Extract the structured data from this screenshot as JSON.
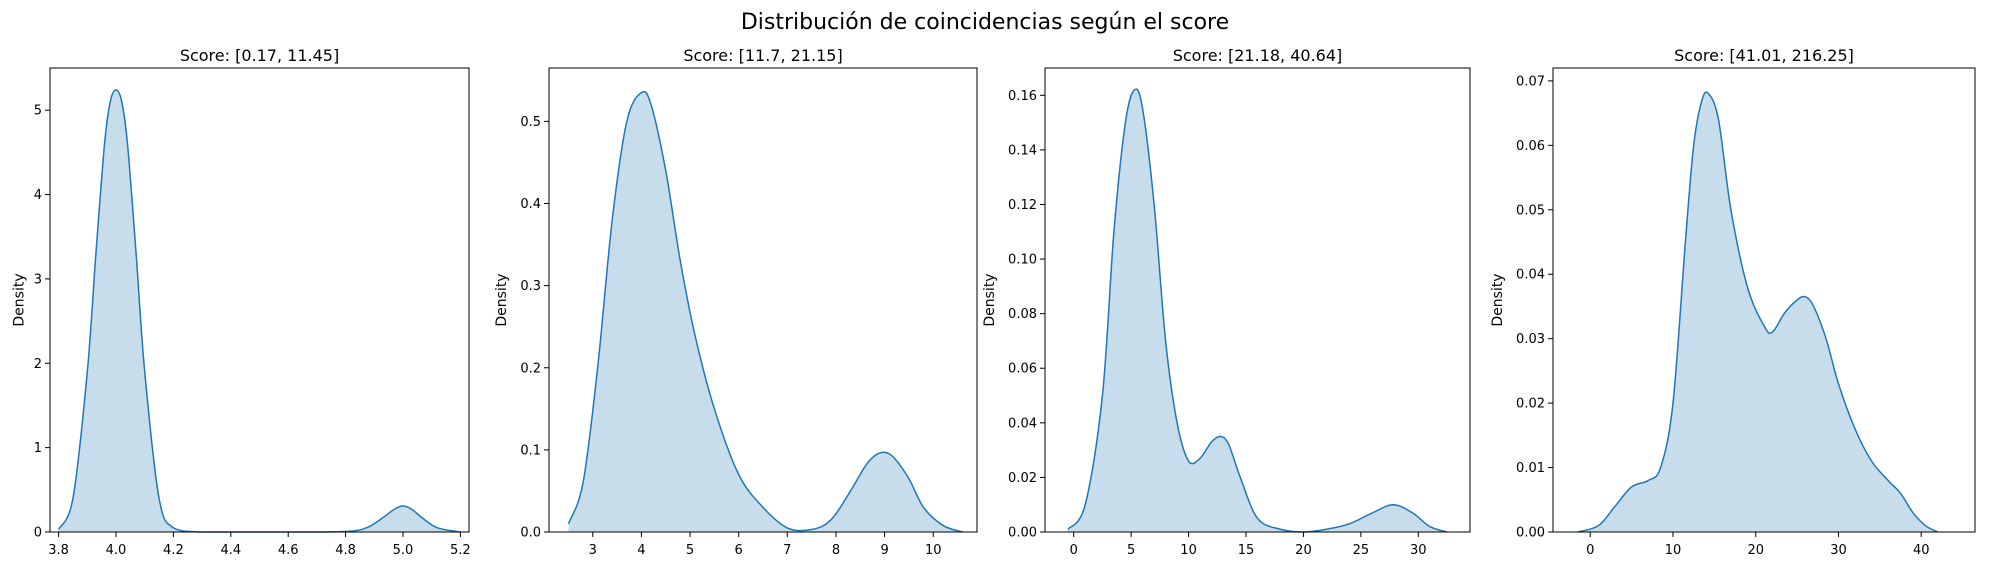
{
  "figure": {
    "title": "Distribución de coincidencias según el score"
  },
  "style": {
    "line_color": "#1f77b4",
    "fill_color": "#1f77b4",
    "fill_opacity": 0.25
  },
  "chart_data": [
    {
      "type": "area",
      "title": "Score: [0.17, 11.45]",
      "xlabel": "",
      "ylabel": "Density",
      "xlim": [
        3.77,
        5.23
      ],
      "ylim": [
        0,
        5.5
      ],
      "xticks": [
        3.8,
        4.0,
        4.2,
        4.4,
        4.6,
        4.8,
        5.0,
        5.2
      ],
      "xtick_labels": [
        "3.8",
        "4.0",
        "4.2",
        "4.4",
        "4.6",
        "4.8",
        "5.0",
        "5.2"
      ],
      "yticks": [
        0,
        1,
        2,
        3,
        4,
        5
      ],
      "ytick_labels": [
        "0",
        "1",
        "2",
        "3",
        "4",
        "5"
      ],
      "x": [
        3.8,
        3.85,
        3.9,
        3.93,
        3.96,
        3.98,
        4.0,
        4.02,
        4.04,
        4.07,
        4.1,
        4.15,
        4.2,
        4.3,
        4.5,
        4.7,
        4.82,
        4.88,
        4.93,
        4.97,
        5.0,
        5.03,
        5.07,
        5.12,
        5.2
      ],
      "y": [
        0.03,
        0.4,
        1.9,
        3.3,
        4.6,
        5.1,
        5.24,
        5.1,
        4.6,
        3.3,
        1.9,
        0.4,
        0.05,
        0.0,
        0.0,
        0.0,
        0.01,
        0.06,
        0.17,
        0.27,
        0.31,
        0.27,
        0.16,
        0.05,
        0.0
      ]
    },
    {
      "type": "area",
      "title": "Score: [11.7, 21.15]",
      "xlabel": "",
      "ylabel": "Density",
      "xlim": [
        2.1,
        10.9
      ],
      "ylim": [
        0,
        0.565
      ],
      "xticks": [
        3,
        4,
        5,
        6,
        7,
        8,
        9,
        10
      ],
      "xtick_labels": [
        "3",
        "4",
        "5",
        "6",
        "7",
        "8",
        "9",
        "10"
      ],
      "yticks": [
        0,
        0.1,
        0.2,
        0.3,
        0.4,
        0.5
      ],
      "ytick_labels": [
        "0.0",
        "0.1",
        "0.2",
        "0.3",
        "0.4",
        "0.5"
      ],
      "x": [
        2.5,
        2.8,
        3.1,
        3.4,
        3.7,
        4.0,
        4.2,
        4.5,
        4.8,
        5.1,
        5.5,
        6.0,
        6.5,
        7.0,
        7.5,
        7.9,
        8.3,
        8.6,
        8.8,
        9.0,
        9.2,
        9.5,
        9.8,
        10.2,
        10.6
      ],
      "y": [
        0.01,
        0.06,
        0.2,
        0.38,
        0.5,
        0.535,
        0.52,
        0.44,
        0.33,
        0.24,
        0.15,
        0.07,
        0.03,
        0.005,
        0.003,
        0.015,
        0.05,
        0.08,
        0.093,
        0.097,
        0.09,
        0.065,
        0.03,
        0.008,
        0.0
      ]
    },
    {
      "type": "area",
      "title": "Score: [21.18, 40.64]",
      "xlabel": "",
      "ylabel": "Density",
      "xlim": [
        -2.5,
        34.5
      ],
      "ylim": [
        0,
        0.17
      ],
      "xticks": [
        0,
        5,
        10,
        15,
        20,
        25,
        30
      ],
      "xtick_labels": [
        "0",
        "5",
        "10",
        "15",
        "20",
        "25",
        "30"
      ],
      "yticks": [
        0,
        0.02,
        0.04,
        0.06,
        0.08,
        0.1,
        0.12,
        0.14,
        0.16
      ],
      "ytick_labels": [
        "0.00",
        "0.02",
        "0.04",
        "0.06",
        "0.08",
        "0.10",
        "0.12",
        "0.14",
        "0.16"
      ],
      "x": [
        -0.5,
        1,
        2.5,
        3.5,
        4.5,
        5.3,
        6,
        7,
        8,
        9,
        10,
        11,
        12,
        12.8,
        13.5,
        14.5,
        16,
        18,
        20,
        22,
        24,
        26,
        27.8,
        29.5,
        31,
        32.5
      ],
      "y": [
        0.001,
        0.01,
        0.05,
        0.11,
        0.15,
        0.162,
        0.155,
        0.12,
        0.07,
        0.04,
        0.026,
        0.027,
        0.033,
        0.035,
        0.032,
        0.02,
        0.005,
        0.001,
        0.0,
        0.001,
        0.003,
        0.007,
        0.01,
        0.007,
        0.002,
        0.0
      ]
    },
    {
      "type": "area",
      "title": "Score: [41.01, 216.25]",
      "xlabel": "",
      "ylabel": "Density",
      "xlim": [
        -4.5,
        46.5
      ],
      "ylim": [
        0,
        0.072
      ],
      "xticks": [
        0,
        10,
        20,
        30,
        40
      ],
      "xtick_labels": [
        "0",
        "10",
        "20",
        "30",
        "40"
      ],
      "yticks": [
        0,
        0.01,
        0.02,
        0.03,
        0.04,
        0.05,
        0.06,
        0.07
      ],
      "ytick_labels": [
        "0.00",
        "0.01",
        "0.02",
        "0.03",
        "0.04",
        "0.05",
        "0.06",
        "0.07"
      ],
      "x": [
        -1.5,
        1,
        3,
        5,
        7,
        8.5,
        10,
        11.5,
        12.5,
        13.5,
        14.3,
        15.5,
        17,
        19,
        21,
        22,
        23.5,
        25,
        26,
        27,
        28.5,
        30,
        32,
        34,
        36,
        37.5,
        39,
        40.5,
        42
      ],
      "y": [
        0.0,
        0.001,
        0.004,
        0.007,
        0.008,
        0.01,
        0.02,
        0.045,
        0.06,
        0.067,
        0.068,
        0.064,
        0.05,
        0.038,
        0.032,
        0.031,
        0.034,
        0.036,
        0.0365,
        0.035,
        0.03,
        0.023,
        0.016,
        0.011,
        0.008,
        0.006,
        0.003,
        0.001,
        0.0
      ]
    }
  ]
}
